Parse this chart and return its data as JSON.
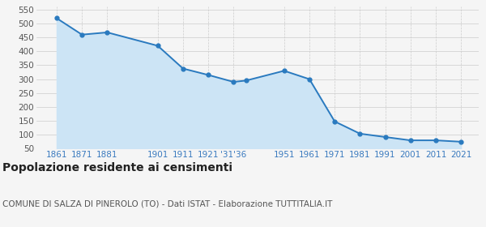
{
  "years": [
    1861,
    1871,
    1881,
    1901,
    1911,
    1921,
    1931,
    1936,
    1951,
    1961,
    1971,
    1981,
    1991,
    2001,
    2011,
    2021
  ],
  "population": [
    519,
    460,
    468,
    420,
    338,
    315,
    290,
    295,
    330,
    300,
    148,
    104,
    92,
    80,
    80,
    75
  ],
  "line_color": "#2a7abf",
  "fill_color": "#cce4f5",
  "marker_color": "#2a7abf",
  "bg_color": "#f5f5f5",
  "grid_color": "#cccccc",
  "title": "Popolazione residente ai censimenti",
  "subtitle": "COMUNE DI SALZA DI PINEROLO (TO) - Dati ISTAT - Elaborazione TUTTITALIA.IT",
  "ylim": [
    50,
    560
  ],
  "yticks": [
    50,
    100,
    150,
    200,
    250,
    300,
    350,
    400,
    450,
    500,
    550
  ],
  "x_tick_positions": [
    1861,
    1871,
    1881,
    1901,
    1911,
    1921,
    1931,
    1951,
    1961,
    1971,
    1981,
    1991,
    2001,
    2011,
    2021
  ],
  "x_tick_labels": [
    "1861",
    "1871",
    "1881",
    "1901",
    "1911",
    "1921",
    "'31'36",
    "1951",
    "1961",
    "1971",
    "1981",
    "1991",
    "2001",
    "2011",
    "2021"
  ],
  "title_fontsize": 10,
  "subtitle_fontsize": 7.5,
  "axis_label_color": "#3a7abf",
  "axis_label_fontsize": 7.5,
  "ytick_color": "#555555"
}
